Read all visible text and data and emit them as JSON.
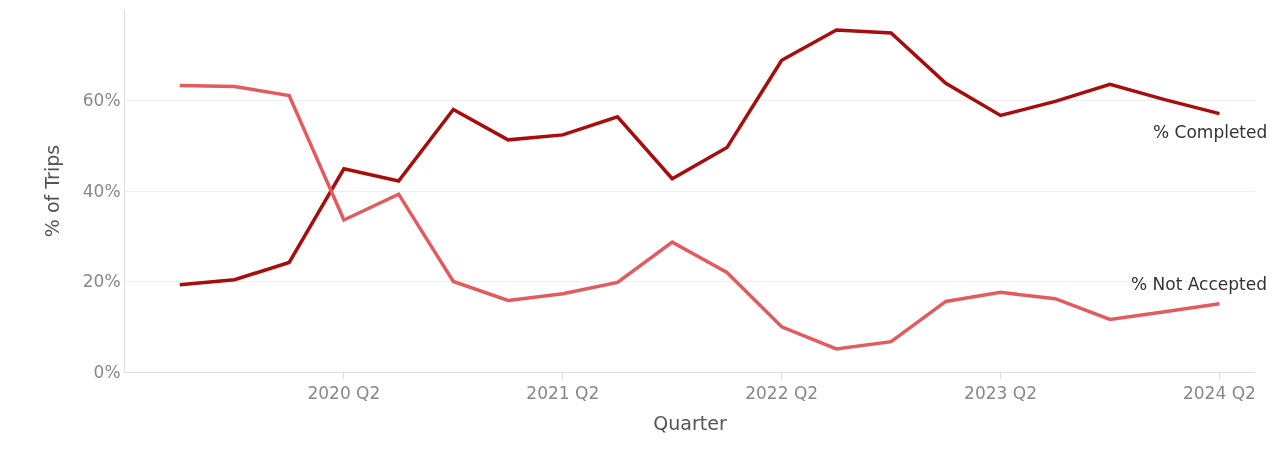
{
  "chart_data": {
    "type": "line",
    "xlabel": "Quarter",
    "ylabel": "% of Trips",
    "categories": [
      null,
      null,
      null,
      "2020 Q2",
      null,
      null,
      null,
      "2021 Q2",
      null,
      null,
      null,
      "2022 Q2",
      null,
      null,
      null,
      "2023 Q2",
      null,
      null,
      null,
      "2024 Q2"
    ],
    "series": [
      {
        "name": "% Completed",
        "color": "#a80d0d",
        "values": [
          19.3,
          20.4,
          24.2,
          44.9,
          42.2,
          58,
          51.3,
          52.4,
          56.4,
          42.7,
          49.6,
          68.9,
          75.6,
          74.9,
          63.8,
          56.7,
          59.8,
          63.6,
          60.2,
          57.1
        ]
      },
      {
        "name": "% Not Accepted",
        "color": "#e35b5f",
        "values": [
          63.3,
          63.1,
          61.1,
          33.6,
          39.3,
          20,
          15.8,
          17.3,
          19.8,
          28.7,
          22,
          10,
          5.1,
          6.7,
          15.6,
          17.6,
          16.2,
          11.6,
          13.3,
          15.1
        ]
      }
    ],
    "ylim": [
      0,
      80
    ],
    "yticks": [
      {
        "value": 0,
        "label": "0%"
      },
      {
        "value": 20,
        "label": "20%"
      },
      {
        "value": 40,
        "label": "40%"
      },
      {
        "value": 60,
        "label": "60%"
      }
    ],
    "grid": "y",
    "legend": false,
    "marker": "none",
    "line_style": "solid"
  }
}
